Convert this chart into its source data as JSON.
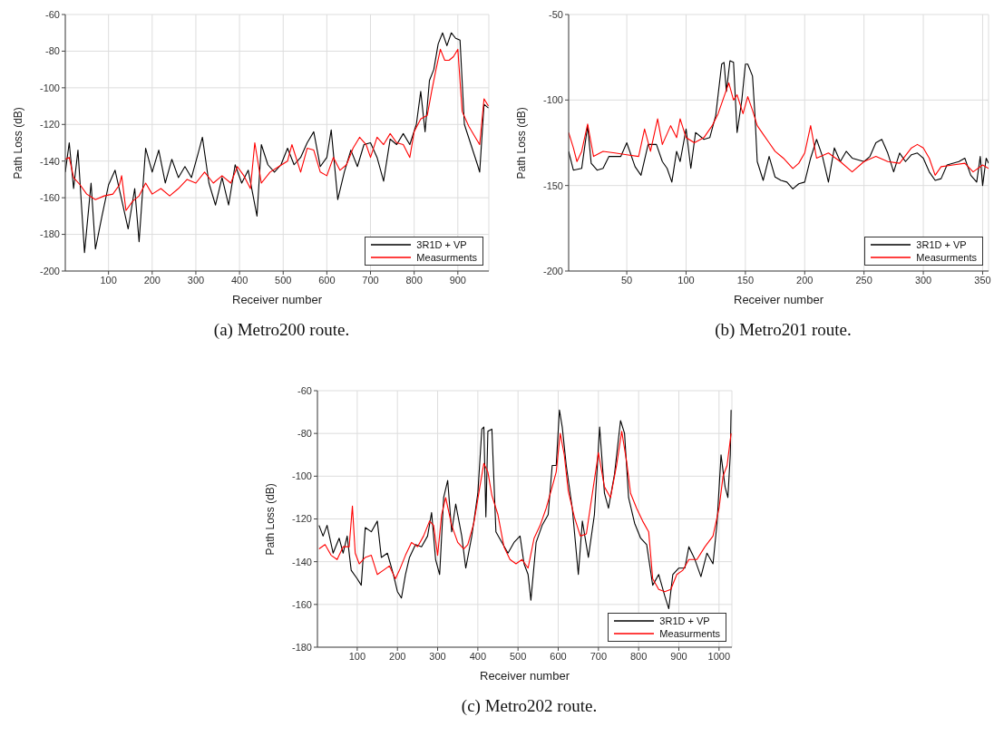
{
  "chart_data": [
    {
      "type": "line",
      "title": "(a) Metro200 route.",
      "xlabel": "Receiver number",
      "ylabel": "Path Loss (dB)",
      "xlim": [
        1,
        971
      ],
      "xticks": [
        100,
        200,
        300,
        400,
        500,
        600,
        700,
        800,
        900
      ],
      "ylim": [
        -200,
        -60
      ],
      "yticks": [
        -200,
        -180,
        -160,
        -140,
        -120,
        -100,
        -80,
        -60
      ],
      "grid": true,
      "legend": "bottom right",
      "series": [
        {
          "name": "3R1D + VP",
          "color": "#000000",
          "x": [
            1,
            10,
            20,
            30,
            45,
            60,
            70,
            85,
            100,
            115,
            130,
            145,
            160,
            170,
            185,
            200,
            215,
            230,
            245,
            260,
            275,
            290,
            305,
            315,
            330,
            345,
            360,
            375,
            390,
            405,
            420,
            440,
            450,
            465,
            480,
            495,
            510,
            525,
            540,
            555,
            570,
            585,
            600,
            610,
            625,
            640,
            655,
            670,
            685,
            700,
            715,
            730,
            745,
            760,
            775,
            790,
            805,
            815,
            825,
            835,
            845,
            855,
            865,
            875,
            885,
            895,
            905,
            915,
            930,
            945,
            950,
            960,
            970
          ],
          "values": [
            -146,
            -130,
            -155,
            -134,
            -190,
            -152,
            -188,
            -170,
            -153,
            -145,
            -161,
            -177,
            -155,
            -184,
            -133,
            -146,
            -134,
            -152,
            -139,
            -149,
            -143,
            -149,
            -136,
            -127,
            -152,
            -164,
            -149,
            -164,
            -142,
            -152,
            -145,
            -170,
            -131,
            -142,
            -146,
            -142,
            -133,
            -142,
            -138,
            -130,
            -124,
            -143,
            -138,
            -123,
            -161,
            -146,
            -134,
            -143,
            -131,
            -130,
            -138,
            -151,
            -128,
            -131,
            -125,
            -131,
            -120,
            -102,
            -124,
            -96,
            -90,
            -76,
            -70,
            -77,
            -70,
            -73,
            -74,
            -120,
            -131,
            -142,
            -146,
            -109,
            -111
          ]
        },
        {
          "name": "Measurments",
          "color": "#ff0000",
          "x": [
            1,
            10,
            20,
            35,
            50,
            70,
            90,
            110,
            125,
            130,
            140,
            155,
            170,
            185,
            200,
            220,
            240,
            260,
            280,
            300,
            320,
            340,
            360,
            380,
            395,
            410,
            425,
            435,
            450,
            470,
            490,
            510,
            520,
            540,
            555,
            570,
            585,
            600,
            615,
            630,
            645,
            660,
            675,
            690,
            700,
            715,
            730,
            745,
            760,
            775,
            790,
            800,
            815,
            830,
            840,
            850,
            860,
            870,
            880,
            890,
            900,
            910,
            925,
            940,
            950,
            960,
            970
          ],
          "values": [
            -139,
            -138,
            -149,
            -153,
            -158,
            -161,
            -159,
            -158,
            -153,
            -148,
            -167,
            -162,
            -159,
            -152,
            -158,
            -155,
            -159,
            -155,
            -150,
            -152,
            -146,
            -152,
            -148,
            -152,
            -143,
            -148,
            -155,
            -130,
            -152,
            -146,
            -143,
            -140,
            -131,
            -146,
            -133,
            -134,
            -146,
            -148,
            -138,
            -145,
            -142,
            -133,
            -127,
            -131,
            -138,
            -127,
            -131,
            -125,
            -130,
            -131,
            -138,
            -124,
            -117,
            -115,
            -102,
            -90,
            -79,
            -85,
            -85,
            -83,
            -79,
            -113,
            -121,
            -127,
            -131,
            -106,
            -110
          ]
        }
      ]
    },
    {
      "type": "line",
      "title": "(b) Metro201 route.",
      "xlabel": "Receiver number",
      "ylabel": "Path Loss (dB)",
      "xlim": [
        1,
        355
      ],
      "xticks": [
        50,
        100,
        150,
        200,
        250,
        300,
        350
      ],
      "ylim": [
        -200,
        -50
      ],
      "yticks": [
        -200,
        -150,
        -100,
        -50
      ],
      "grid": true,
      "legend": "bottom right",
      "series": [
        {
          "name": "3R1D + VP",
          "color": "#000000",
          "x": [
            1,
            5,
            12,
            17,
            20,
            25,
            30,
            35,
            45,
            50,
            57,
            62,
            68,
            75,
            80,
            84,
            88,
            92,
            95,
            100,
            104,
            108,
            115,
            120,
            125,
            130,
            132,
            134,
            137,
            140,
            143,
            147,
            150,
            152,
            156,
            158,
            160,
            165,
            170,
            175,
            180,
            185,
            190,
            195,
            200,
            205,
            210,
            215,
            220,
            225,
            230,
            235,
            240,
            250,
            255,
            260,
            265,
            270,
            275,
            280,
            285,
            290,
            295,
            300,
            305,
            310,
            315,
            320,
            330,
            335,
            340,
            345,
            348,
            350,
            353,
            355
          ],
          "values": [
            -130,
            -141,
            -140,
            -115,
            -137,
            -141,
            -140,
            -133,
            -133,
            -125,
            -139,
            -144,
            -126,
            -126,
            -136,
            -140,
            -148,
            -130,
            -136,
            -117,
            -140,
            -119,
            -123,
            -122,
            -109,
            -79,
            -78,
            -95,
            -77,
            -78,
            -119,
            -100,
            -79,
            -79,
            -86,
            -108,
            -136,
            -147,
            -133,
            -145,
            -147,
            -148,
            -152,
            -149,
            -148,
            -134,
            -123,
            -133,
            -148,
            -128,
            -136,
            -130,
            -134,
            -136,
            -133,
            -125,
            -123,
            -131,
            -142,
            -131,
            -136,
            -132,
            -131,
            -134,
            -142,
            -147,
            -146,
            -138,
            -136,
            -134,
            -144,
            -148,
            -133,
            -150,
            -134,
            -137
          ]
        },
        {
          "name": "Measurments",
          "color": "#ff0000",
          "x": [
            1,
            5,
            8,
            12,
            17,
            22,
            30,
            40,
            50,
            60,
            65,
            70,
            76,
            80,
            87,
            92,
            95,
            100,
            107,
            115,
            122,
            127,
            132,
            136,
            140,
            143,
            148,
            152,
            156,
            160,
            165,
            170,
            175,
            182,
            190,
            195,
            200,
            205,
            210,
            220,
            230,
            240,
            250,
            260,
            270,
            280,
            290,
            295,
            300,
            305,
            310,
            315,
            325,
            335,
            342,
            350,
            355
          ],
          "values": [
            -119,
            -128,
            -136,
            -130,
            -114,
            -133,
            -130,
            -131,
            -132,
            -133,
            -117,
            -130,
            -111,
            -126,
            -115,
            -122,
            -111,
            -122,
            -125,
            -122,
            -115,
            -108,
            -98,
            -90,
            -100,
            -97,
            -108,
            -98,
            -106,
            -115,
            -120,
            -125,
            -130,
            -134,
            -140,
            -137,
            -131,
            -115,
            -134,
            -131,
            -136,
            -142,
            -136,
            -133,
            -136,
            -137,
            -128,
            -126,
            -128,
            -134,
            -144,
            -139,
            -138,
            -137,
            -142,
            -138,
            -140
          ]
        }
      ]
    },
    {
      "type": "line",
      "title": "(c) Metro202 route.",
      "xlabel": "Receiver number",
      "ylabel": "Path Loss (dB)",
      "xlim": [
        1,
        1032
      ],
      "xticks": [
        100,
        200,
        300,
        400,
        500,
        600,
        700,
        800,
        900,
        1000
      ],
      "ylim": [
        -180,
        -60
      ],
      "yticks": [
        -180,
        -160,
        -140,
        -120,
        -100,
        -80,
        -60
      ],
      "grid": true,
      "legend": "bottom right",
      "series": [
        {
          "name": "3R1D + VP",
          "color": "#000000",
          "x": [
            5,
            15,
            25,
            40,
            55,
            65,
            75,
            85,
            100,
            110,
            120,
            135,
            150,
            160,
            175,
            190,
            200,
            210,
            220,
            230,
            245,
            260,
            275,
            285,
            295,
            305,
            315,
            325,
            335,
            345,
            360,
            370,
            385,
            400,
            410,
            415,
            420,
            425,
            435,
            445,
            460,
            475,
            490,
            505,
            515,
            525,
            532,
            545,
            560,
            575,
            585,
            595,
            603,
            610,
            620,
            635,
            650,
            660,
            675,
            690,
            703,
            715,
            725,
            740,
            755,
            765,
            775,
            790,
            805,
            820,
            835,
            850,
            865,
            875,
            885,
            900,
            915,
            925,
            940,
            955,
            970,
            985,
            995,
            1005,
            1015,
            1022,
            1028,
            1030
          ],
          "values": [
            -123,
            -128,
            -123,
            -136,
            -129,
            -136,
            -128,
            -144,
            -148,
            -151,
            -124,
            -126,
            -121,
            -138,
            -136,
            -146,
            -154,
            -157,
            -146,
            -138,
            -132,
            -133,
            -128,
            -117,
            -139,
            -146,
            -110,
            -102,
            -126,
            -113,
            -128,
            -143,
            -128,
            -108,
            -78,
            -77,
            -119,
            -79,
            -78,
            -126,
            -131,
            -136,
            -131,
            -128,
            -141,
            -146,
            -158,
            -131,
            -123,
            -118,
            -95,
            -95,
            -69,
            -77,
            -95,
            -115,
            -146,
            -121,
            -138,
            -118,
            -77,
            -108,
            -115,
            -99,
            -74,
            -80,
            -110,
            -122,
            -129,
            -132,
            -151,
            -146,
            -156,
            -162,
            -146,
            -143,
            -143,
            -133,
            -139,
            -147,
            -136,
            -141,
            -122,
            -90,
            -105,
            -110,
            -90,
            -69
          ]
        },
        {
          "name": "Measurments",
          "color": "#ff0000",
          "x": [
            5,
            20,
            35,
            50,
            65,
            80,
            88,
            95,
            105,
            120,
            135,
            150,
            165,
            180,
            195,
            205,
            220,
            235,
            250,
            265,
            280,
            290,
            300,
            310,
            320,
            335,
            350,
            365,
            375,
            390,
            405,
            415,
            425,
            435,
            450,
            465,
            480,
            495,
            510,
            525,
            540,
            555,
            570,
            585,
            595,
            605,
            615,
            625,
            640,
            655,
            670,
            685,
            700,
            715,
            730,
            745,
            758,
            770,
            780,
            795,
            810,
            825,
            835,
            850,
            865,
            880,
            895,
            910,
            925,
            945,
            965,
            985,
            1000,
            1010,
            1020,
            1030
          ],
          "values": [
            -134,
            -132,
            -137,
            -139,
            -133,
            -133,
            -114,
            -136,
            -141,
            -138,
            -137,
            -146,
            -144,
            -142,
            -148,
            -144,
            -137,
            -131,
            -133,
            -128,
            -121,
            -123,
            -137,
            -118,
            -110,
            -123,
            -131,
            -134,
            -132,
            -122,
            -105,
            -94,
            -98,
            -109,
            -118,
            -133,
            -139,
            -141,
            -139,
            -143,
            -129,
            -123,
            -115,
            -105,
            -98,
            -80,
            -90,
            -107,
            -119,
            -128,
            -127,
            -108,
            -89,
            -105,
            -110,
            -95,
            -79,
            -93,
            -108,
            -115,
            -121,
            -126,
            -148,
            -153,
            -154,
            -153,
            -146,
            -144,
            -139,
            -139,
            -133,
            -128,
            -115,
            -100,
            -95,
            -80
          ]
        }
      ]
    }
  ]
}
